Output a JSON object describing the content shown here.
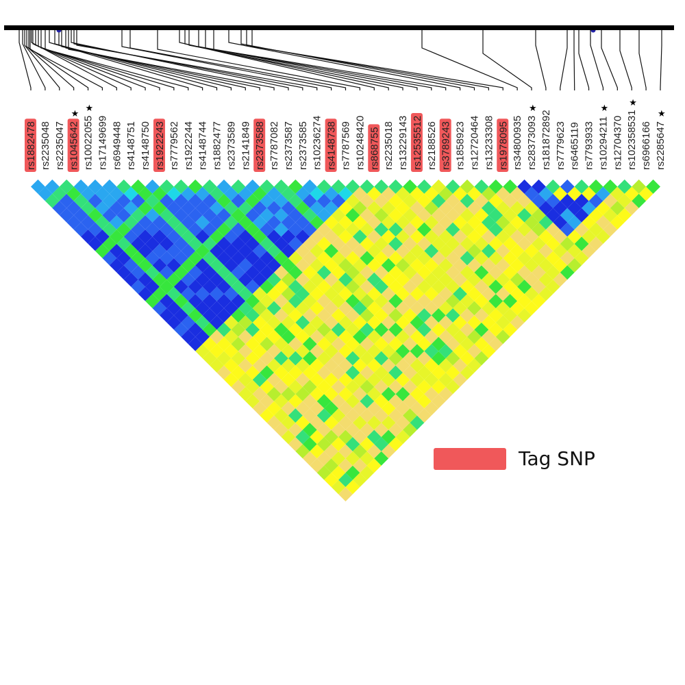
{
  "colors": {
    "tag": "#f0585a",
    "palette": [
      "#5511ee",
      "#1a2ee0",
      "#2b63f0",
      "#2aa7f0",
      "#1ed8e8",
      "#34e07a",
      "#37e63d",
      "#8be83a",
      "#b7ee2e",
      "#e7f52a",
      "#fdfa1a",
      "#f4dc6e"
    ]
  },
  "snps": [
    {
      "id": "rs1882478",
      "tag": true,
      "star": false
    },
    {
      "id": "rs2235048",
      "tag": false,
      "star": false
    },
    {
      "id": "rs2235047",
      "tag": false,
      "star": false
    },
    {
      "id": "rs1045642",
      "tag": true,
      "star": true
    },
    {
      "id": "rs10022055",
      "tag": false,
      "star": true
    },
    {
      "id": "rs17149699",
      "tag": false,
      "star": false
    },
    {
      "id": "rs6949448",
      "tag": false,
      "star": false
    },
    {
      "id": "rs4148751",
      "tag": false,
      "star": false
    },
    {
      "id": "rs4148750",
      "tag": false,
      "star": false
    },
    {
      "id": "rs1922243",
      "tag": true,
      "star": false
    },
    {
      "id": "rs7779562",
      "tag": false,
      "star": false
    },
    {
      "id": "rs1922244",
      "tag": false,
      "star": false
    },
    {
      "id": "rs4148744",
      "tag": false,
      "star": false
    },
    {
      "id": "rs1882477",
      "tag": false,
      "star": false
    },
    {
      "id": "rs2373589",
      "tag": false,
      "star": false
    },
    {
      "id": "rs2141849",
      "tag": false,
      "star": false
    },
    {
      "id": "rs2373588",
      "tag": true,
      "star": false
    },
    {
      "id": "rs7787082",
      "tag": false,
      "star": false
    },
    {
      "id": "rs2373587",
      "tag": false,
      "star": false
    },
    {
      "id": "rs2373585",
      "tag": false,
      "star": false
    },
    {
      "id": "rs10236274",
      "tag": false,
      "star": false
    },
    {
      "id": "rs4148738",
      "tag": true,
      "star": false
    },
    {
      "id": "rs7787569",
      "tag": false,
      "star": false
    },
    {
      "id": "rs10248420",
      "tag": false,
      "star": false
    },
    {
      "id": "rs868755",
      "tag": true,
      "star": false
    },
    {
      "id": "rs2235018",
      "tag": false,
      "star": false
    },
    {
      "id": "rs13229143",
      "tag": false,
      "star": false
    },
    {
      "id": "rs12535512",
      "tag": true,
      "star": false
    },
    {
      "id": "rs2188526",
      "tag": false,
      "star": false
    },
    {
      "id": "rs3789243",
      "tag": true,
      "star": false
    },
    {
      "id": "rs1858923",
      "tag": false,
      "star": false
    },
    {
      "id": "rs12720464",
      "tag": false,
      "star": false
    },
    {
      "id": "rs13233308",
      "tag": false,
      "star": false
    },
    {
      "id": "rs1978095",
      "tag": true,
      "star": false
    },
    {
      "id": "rs34800935",
      "tag": false,
      "star": false
    },
    {
      "id": "rs28373093",
      "tag": false,
      "star": true
    },
    {
      "id": "rs181872892",
      "tag": false,
      "star": false
    },
    {
      "id": "rs7779623",
      "tag": false,
      "star": false
    },
    {
      "id": "rs6465119",
      "tag": false,
      "star": false
    },
    {
      "id": "rs7793933",
      "tag": false,
      "star": false
    },
    {
      "id": "rs10294211",
      "tag": false,
      "star": true
    },
    {
      "id": "rs12704370",
      "tag": false,
      "star": false
    },
    {
      "id": "rs102358531",
      "tag": false,
      "star": true
    },
    {
      "id": "rs6966166",
      "tag": false,
      "star": false
    },
    {
      "id": "rs2285647",
      "tag": false,
      "star": true
    }
  ],
  "legend": {
    "label": "Tag SNP"
  }
}
